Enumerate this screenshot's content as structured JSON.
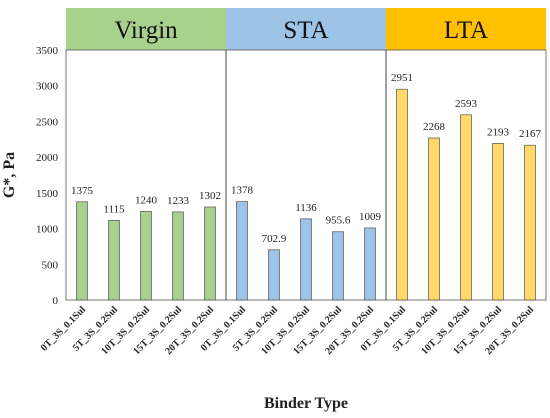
{
  "chart_data": {
    "type": "bar",
    "xlabel": "Binder Type",
    "ylabel": "G*, Pa",
    "ylim": [
      0,
      3500
    ],
    "yticks": [
      0,
      500,
      1000,
      1500,
      2000,
      2500,
      3000,
      3500
    ],
    "grid": false,
    "groups": [
      {
        "name": "Virgin",
        "color": "#a9d18e",
        "bar_color": "#a9d18e",
        "categories": [
          "0T_3S_0.1Sul",
          "5T_3S_0.2Sul",
          "10T_3S_0.2Sul",
          "15T_3S_0.2Sul",
          "20T_3S_0.2Sul"
        ],
        "values": [
          1375,
          1115,
          1240,
          1233,
          1302
        ],
        "labels": [
          "1375",
          "1115",
          "1240",
          "1233",
          "1302"
        ]
      },
      {
        "name": "STA",
        "color": "#9dc3e6",
        "bar_color": "#9dc3e6",
        "categories": [
          "0T_3S_0.1Sul",
          "5T_3S_0.2Sul",
          "10T_3S_0.2Sul",
          "15T_3S_0.2Sul",
          "20T_3S_0.2Sul"
        ],
        "values": [
          1378,
          702.9,
          1136,
          955.6,
          1009
        ],
        "labels": [
          "1378",
          "702.9",
          "1136",
          "955.6",
          "1009"
        ]
      },
      {
        "name": "LTA",
        "color": "#ffc000",
        "bar_color": "#ffd966",
        "categories": [
          "0T_3S_0.1Sul",
          "5T_3S_0.2Sul",
          "10T_3S_0.2Sul",
          "15T_3S_0.2Sul",
          "20T_3S_0.2Sul"
        ],
        "values": [
          2951,
          2268,
          2593,
          2193,
          2167
        ],
        "labels": [
          "2951",
          "2268",
          "2593",
          "2193",
          "2167"
        ]
      }
    ]
  }
}
